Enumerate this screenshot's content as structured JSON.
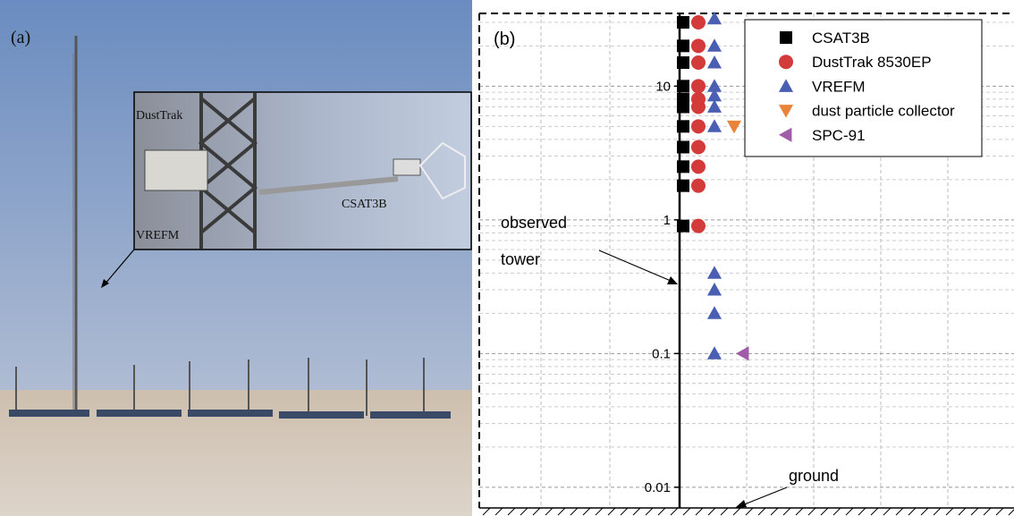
{
  "photo": {
    "panel_label": "(a)",
    "inset_labels": [
      "DustTrak",
      "VREFM",
      "CSAT3B"
    ]
  },
  "chart_data": {
    "type": "scatter",
    "panel_label": "(b)",
    "log_y": true,
    "grid": true,
    "legend": "upper right",
    "ylim": [
      0.007,
      35
    ],
    "yticks": [
      0.01,
      0.1,
      1,
      10
    ],
    "annotations": {
      "tower": [
        "observed",
        "tower"
      ],
      "ground": "ground"
    },
    "series": [
      {
        "name": "CSAT3B",
        "color": "#000000",
        "marker": "square",
        "values": [
          30,
          20,
          15,
          10,
          8,
          7,
          5,
          3.5,
          2.5,
          1.8,
          0.9
        ]
      },
      {
        "name": "DustTrak 8530EP",
        "color": "#d33b3b",
        "marker": "circle",
        "values": [
          30,
          20,
          15,
          10,
          8,
          7,
          5,
          3.5,
          2.5,
          1.8,
          0.9
        ]
      },
      {
        "name": "VREFM",
        "color": "#4a5fb2",
        "marker": "triangle-up",
        "values": [
          32,
          20,
          15,
          10,
          8.5,
          7,
          5,
          0.4,
          0.3,
          0.2,
          0.1
        ]
      },
      {
        "name": "dust particle collector",
        "color": "#e8843a",
        "marker": "triangle-down",
        "values": [
          5
        ]
      },
      {
        "name": "SPC-91",
        "color": "#a05ca8",
        "marker": "triangle-left",
        "values": [
          0.1
        ]
      }
    ]
  }
}
